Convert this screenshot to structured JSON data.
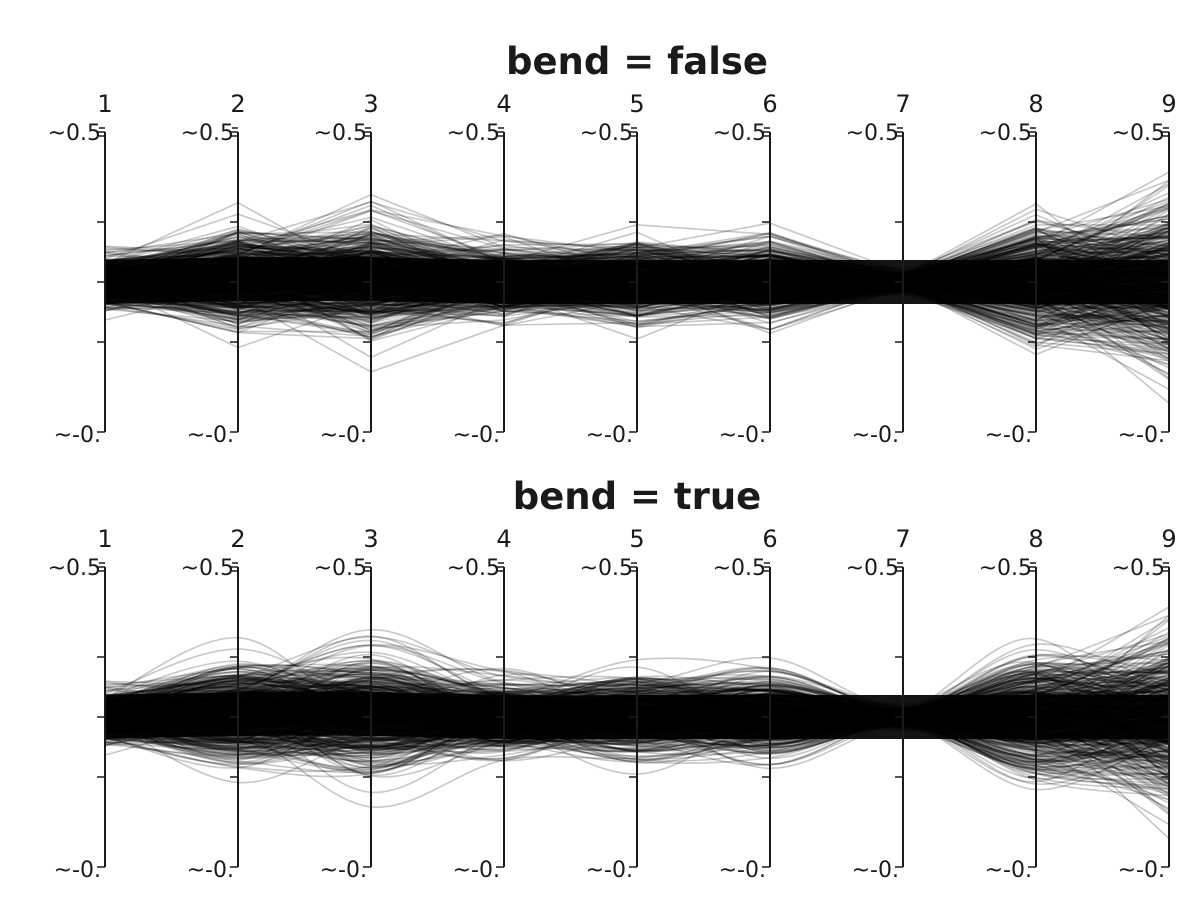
{
  "chart_data": [
    {
      "type": "parallel-coordinates",
      "title": "bend = false",
      "bend": false,
      "axes": [
        "1",
        "2",
        "3",
        "4",
        "5",
        "6",
        "7",
        "8",
        "9"
      ],
      "tick_top_label": "~0.5",
      "tick_bottom_label": "~-0.",
      "axis_range": [
        -0.5,
        0.5
      ],
      "line_count": 1000,
      "line_color": "#000000",
      "series_profile": {
        "center": [
          0.0,
          0.01,
          0.01,
          0.0,
          0.0,
          0.0,
          0.0,
          0.0,
          0.0
        ],
        "spread": [
          0.13,
          0.26,
          0.28,
          0.18,
          0.2,
          0.2,
          0.05,
          0.3,
          0.42
        ]
      }
    },
    {
      "type": "parallel-coordinates",
      "title": "bend = true",
      "bend": true,
      "axes": [
        "1",
        "2",
        "3",
        "4",
        "5",
        "6",
        "7",
        "8",
        "9"
      ],
      "tick_top_label": "~0.5",
      "tick_bottom_label": "~-0.",
      "axis_range": [
        -0.5,
        0.5
      ],
      "line_count": 1000,
      "line_color": "#000000",
      "series_profile": {
        "center": [
          0.0,
          0.01,
          0.01,
          0.0,
          0.0,
          0.0,
          0.0,
          0.0,
          0.0
        ],
        "spread": [
          0.13,
          0.26,
          0.28,
          0.18,
          0.2,
          0.2,
          0.05,
          0.3,
          0.42
        ]
      }
    }
  ]
}
